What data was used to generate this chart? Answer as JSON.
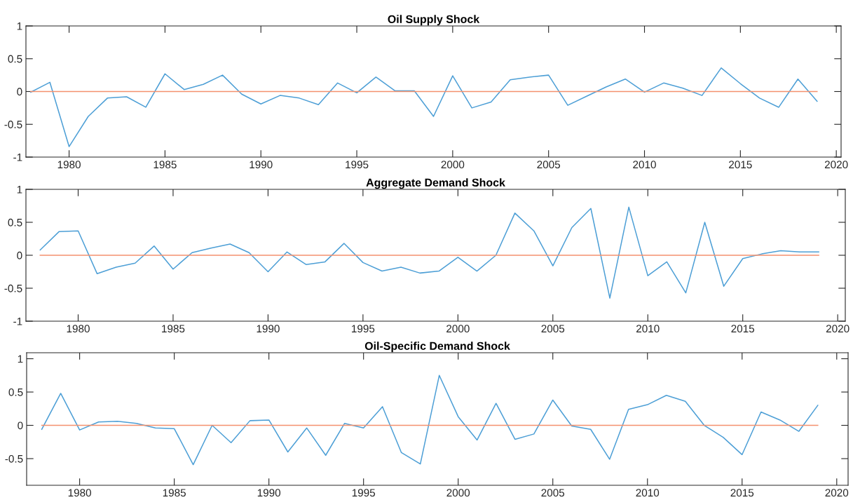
{
  "chart_data": [
    {
      "type": "line",
      "title": "Oil Supply Shock",
      "x": [
        1978,
        1979,
        1980,
        1981,
        1982,
        1983,
        1984,
        1985,
        1986,
        1987,
        1988,
        1989,
        1990,
        1991,
        1992,
        1993,
        1994,
        1995,
        1996,
        1997,
        1998,
        1999,
        2000,
        2001,
        2002,
        2003,
        2004,
        2005,
        2006,
        2007,
        2008,
        2009,
        2010,
        2011,
        2012,
        2013,
        2014,
        2015,
        2016,
        2017,
        2018,
        2019
      ],
      "series": [
        {
          "color": "#4d9fd6",
          "values": [
            -0.01,
            0.14,
            -0.84,
            -0.38,
            -0.1,
            -0.08,
            -0.24,
            0.27,
            0.03,
            0.11,
            0.25,
            -0.04,
            -0.19,
            -0.06,
            -0.1,
            -0.2,
            0.13,
            -0.02,
            0.22,
            0.01,
            0.01,
            -0.38,
            0.24,
            -0.25,
            -0.16,
            0.18,
            0.22,
            0.25,
            -0.21,
            -0.07,
            0.07,
            0.19,
            -0.01,
            0.13,
            0.05,
            -0.06,
            0.36,
            0.12,
            -0.1,
            -0.24,
            0.19,
            -0.15
          ]
        },
        {
          "color": "#f4916e",
          "values": [
            0,
            0,
            0,
            0,
            0,
            0,
            0,
            0,
            0,
            0,
            0,
            0,
            0,
            0,
            0,
            0,
            0,
            0,
            0,
            0,
            0,
            0,
            0,
            0,
            0,
            0,
            0,
            0,
            0,
            0,
            0,
            0,
            0,
            0,
            0,
            0,
            0,
            0,
            0,
            0,
            0,
            0
          ]
        }
      ],
      "xlim": [
        1977.75,
        2020.25
      ],
      "xticks": [
        1980,
        1985,
        1990,
        1995,
        2000,
        2005,
        2010,
        2015,
        2020
      ],
      "ylim": [
        -1,
        1
      ],
      "yticks": [
        -1,
        -0.5,
        0,
        0.5,
        1
      ],
      "grid": false
    },
    {
      "type": "line",
      "title": "Aggregate Demand Shock",
      "x": [
        1978,
        1979,
        1980,
        1981,
        1982,
        1983,
        1984,
        1985,
        1986,
        1987,
        1988,
        1989,
        1990,
        1991,
        1992,
        1993,
        1994,
        1995,
        1996,
        1997,
        1998,
        1999,
        2000,
        2001,
        2002,
        2003,
        2004,
        2005,
        2006,
        2007,
        2008,
        2009,
        2010,
        2011,
        2012,
        2013,
        2014,
        2015,
        2016,
        2017,
        2018,
        2019
      ],
      "series": [
        {
          "color": "#4d9fd6",
          "values": [
            0.08,
            0.36,
            0.37,
            -0.28,
            -0.18,
            -0.12,
            0.14,
            -0.21,
            0.04,
            0.11,
            0.17,
            0.04,
            -0.25,
            0.05,
            -0.14,
            -0.1,
            0.18,
            -0.11,
            -0.24,
            -0.18,
            -0.27,
            -0.24,
            -0.03,
            -0.24,
            0.0,
            0.64,
            0.37,
            -0.16,
            0.42,
            0.71,
            -0.65,
            0.73,
            -0.31,
            -0.1,
            -0.57,
            0.5,
            -0.47,
            -0.05,
            0.02,
            0.07,
            0.05,
            0.05
          ]
        },
        {
          "color": "#f4916e",
          "values": [
            0,
            0,
            0,
            0,
            0,
            0,
            0,
            0,
            0,
            0,
            0,
            0,
            0,
            0,
            0,
            0,
            0,
            0,
            0,
            0,
            0,
            0,
            0,
            0,
            0,
            0,
            0,
            0,
            0,
            0,
            0,
            0,
            0,
            0,
            0,
            0,
            0,
            0,
            0,
            0,
            0,
            0
          ]
        }
      ],
      "xlim": [
        1977.25,
        2020.4
      ],
      "xticks": [
        1980,
        1985,
        1990,
        1995,
        2000,
        2005,
        2010,
        2015,
        2020
      ],
      "ylim": [
        -1,
        1
      ],
      "yticks": [
        -1,
        -0.5,
        0,
        0.5,
        1
      ],
      "grid": false
    },
    {
      "type": "line",
      "title": "Oil-Specific Demand Shock",
      "x": [
        1978,
        1979,
        1980,
        1981,
        1982,
        1983,
        1984,
        1985,
        1986,
        1987,
        1988,
        1989,
        1990,
        1991,
        1992,
        1993,
        1994,
        1995,
        1996,
        1997,
        1998,
        1999,
        2000,
        2001,
        2002,
        2003,
        2004,
        2005,
        2006,
        2007,
        2008,
        2009,
        2010,
        2011,
        2012,
        2013,
        2014,
        2015,
        2016,
        2017,
        2018,
        2019
      ],
      "series": [
        {
          "color": "#4d9fd6",
          "values": [
            -0.06,
            0.48,
            -0.07,
            0.05,
            0.06,
            0.03,
            -0.04,
            -0.05,
            -0.59,
            0.0,
            -0.26,
            0.07,
            0.08,
            -0.4,
            -0.04,
            -0.45,
            0.03,
            -0.04,
            0.28,
            -0.41,
            -0.58,
            0.75,
            0.13,
            -0.22,
            0.33,
            -0.21,
            -0.13,
            0.38,
            -0.01,
            -0.06,
            -0.51,
            0.24,
            0.31,
            0.45,
            0.36,
            0.0,
            -0.18,
            -0.44,
            0.2,
            0.08,
            -0.09,
            0.3
          ]
        },
        {
          "color": "#f4916e",
          "values": [
            0,
            0,
            0,
            0,
            0,
            0,
            0,
            0,
            0,
            0,
            0,
            0,
            0,
            0,
            0,
            0,
            0,
            0,
            0,
            0,
            0,
            0,
            0,
            0,
            0,
            0,
            0,
            0,
            0,
            0,
            0,
            0,
            0,
            0,
            0,
            0,
            0,
            0,
            0,
            0,
            0,
            0
          ]
        }
      ],
      "xlim": [
        1977.2,
        2020.6
      ],
      "xticks": [
        1980,
        1985,
        1990,
        1995,
        2000,
        2005,
        2010,
        2015,
        2020
      ],
      "ylim": [
        -0.9,
        1.09
      ],
      "yticks": [
        -0.5,
        0,
        0.5,
        1
      ],
      "grid": false
    }
  ]
}
